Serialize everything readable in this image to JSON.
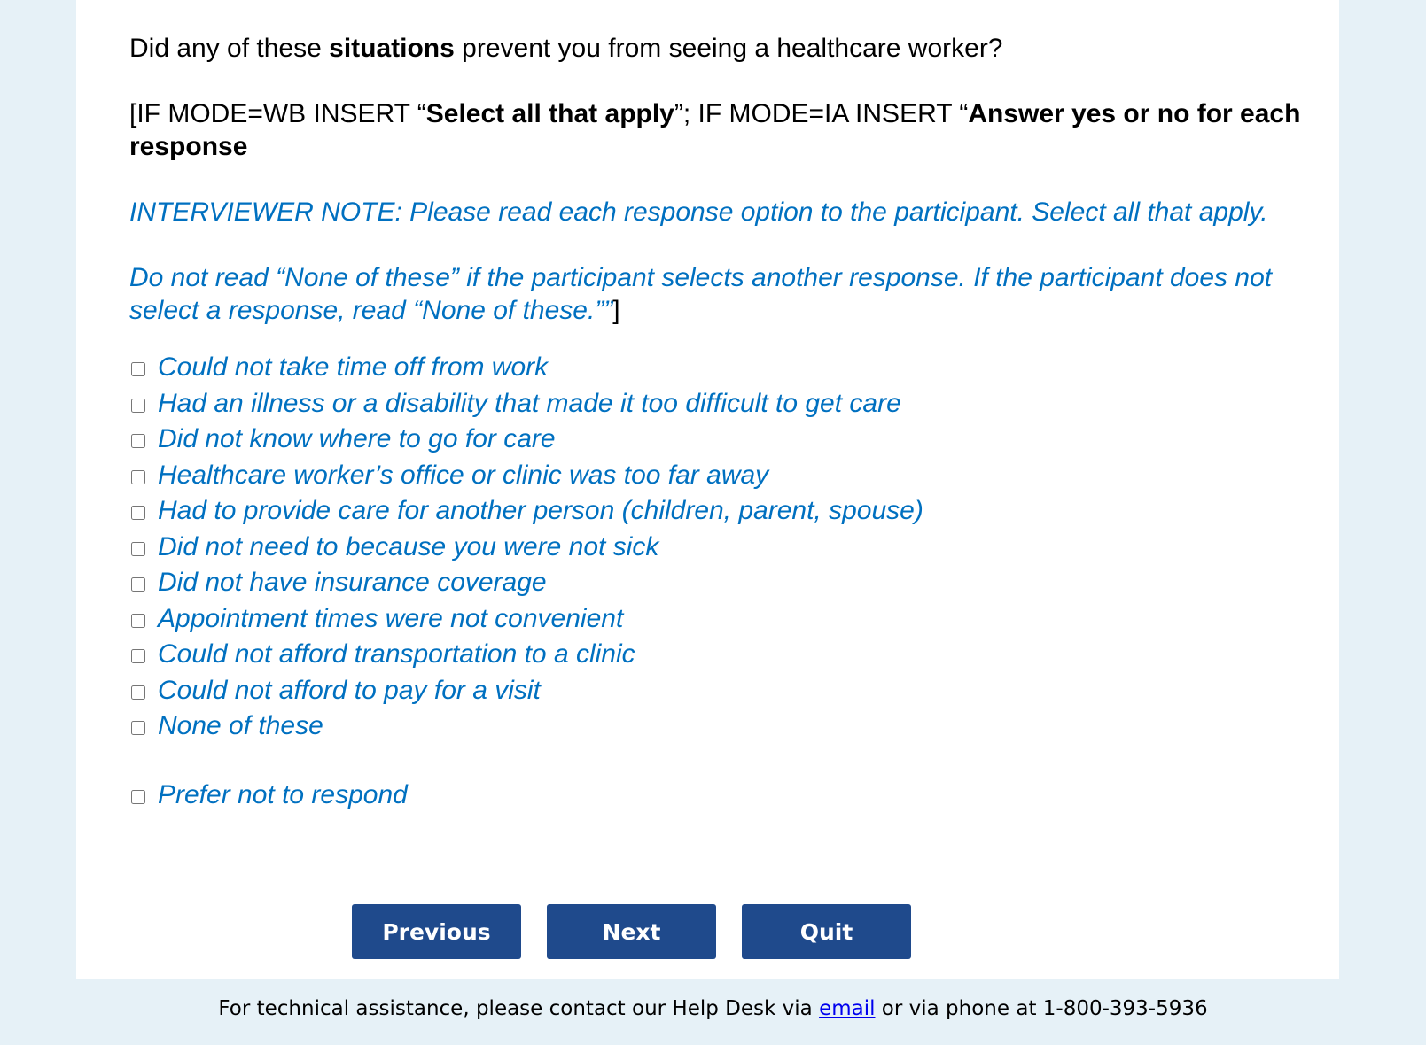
{
  "question": {
    "pre": "Did any of these ",
    "bold": "situations",
    "post": " prevent you from seeing a healthcare worker?"
  },
  "instruction": {
    "p1": "[IF MODE=WB INSERT “",
    "b1": "Select all that apply",
    "p2": "”; IF MODE=IA INSERT “",
    "b2": "Answer yes or no for each response"
  },
  "note1": "INTERVIEWER NOTE: Please read each response option to the participant. Select all that apply.",
  "note2": "Do not read “None of these” if the participant selects another response. If the participant does not select a response, read “None of these.””",
  "note2_close": "]",
  "options": [
    "Could not take time off from work",
    "Had an illness or a disability that made it too difficult to get care",
    "Did not know where to go for care",
    "Healthcare worker’s office or clinic was too far away",
    "Had to provide care for another person (children, parent, spouse)",
    "Did not need to because you were not sick",
    "Did not have insurance coverage",
    "Appointment times were not convenient",
    "Could not afford transportation to a clinic",
    "Could not afford to pay for a visit",
    "None of these"
  ],
  "prefer_not": "Prefer not to respond",
  "buttons": {
    "previous": "Previous",
    "next": "Next",
    "quit": "Quit"
  },
  "footer": {
    "pre": "For technical assistance, please contact our Help Desk via ",
    "link": "email",
    "post": " or via phone at 1-800-393-5936"
  },
  "colors": {
    "note": "#0070c0",
    "button": "#1f4a8c",
    "background": "#e6f1f7"
  }
}
